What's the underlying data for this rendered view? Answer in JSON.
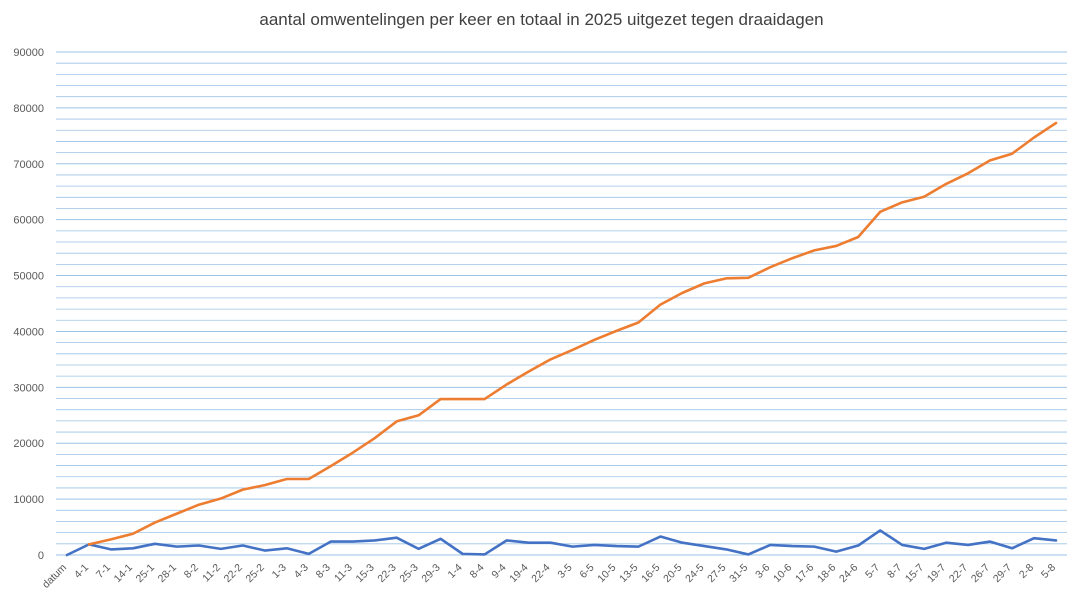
{
  "chart_data": {
    "type": "line",
    "title": "aantal omwentelingen per keer en totaal in 2025 uitgezet tegen draaidagen",
    "xlabel": "",
    "ylabel": "",
    "ylim": [
      0,
      90000
    ],
    "yticks": [
      0,
      10000,
      20000,
      30000,
      40000,
      50000,
      60000,
      70000,
      80000,
      90000
    ],
    "grid": true,
    "legend": "none",
    "categories": [
      "datum",
      "4-1",
      "7-1",
      "14-1",
      "25-1",
      "28-1",
      "8-2",
      "11-2",
      "22-2",
      "25-2",
      "1-3",
      "4-3",
      "8-3",
      "11-3",
      "15-3",
      "22-3",
      "25-3",
      "29-3",
      "1-4",
      "8-4",
      "9-4",
      "19-4",
      "22-4",
      "3-5",
      "6-5",
      "10-5",
      "13-5",
      "16-5",
      "20-5",
      "24-5",
      "27-5",
      "31-5",
      "3-6",
      "10-6",
      "17-6",
      "18-6",
      "24-6",
      "5-7",
      "8-7",
      "15-7",
      "19-7",
      "22-7",
      "26-7",
      "29-7",
      "2-8",
      "5-8"
    ],
    "series": [
      {
        "color": "#4472C4",
        "values": [
          0,
          1900,
          1000,
          1200,
          2000,
          1500,
          1700,
          1100,
          1700,
          800,
          1200,
          200,
          2400,
          2400,
          2600,
          3100,
          1100,
          2900,
          200,
          100,
          2600,
          2200,
          2200,
          1500,
          1800,
          1600,
          1500,
          3300,
          2200,
          1600,
          1000,
          100,
          1800,
          1600,
          1500,
          600,
          1700,
          4400,
          1800,
          1100,
          2200,
          1800,
          2400,
          1200,
          3000,
          2600
        ]
      },
      {
        "color": "#ED7D31",
        "values": [
          null,
          1900,
          2800,
          3800,
          5800,
          7400,
          9000,
          10100,
          11700,
          12500,
          13600,
          13600,
          15900,
          18300,
          20900,
          23900,
          25000,
          27900,
          27900,
          27900,
          30500,
          32800,
          35000,
          36700,
          38500,
          40100,
          41600,
          44800,
          46900,
          48600,
          49500,
          49600,
          51500,
          53100,
          54500,
          55300,
          56900,
          61400,
          63100,
          64100,
          66400,
          68300,
          70600,
          71800,
          74700,
          77300
        ]
      }
    ]
  }
}
